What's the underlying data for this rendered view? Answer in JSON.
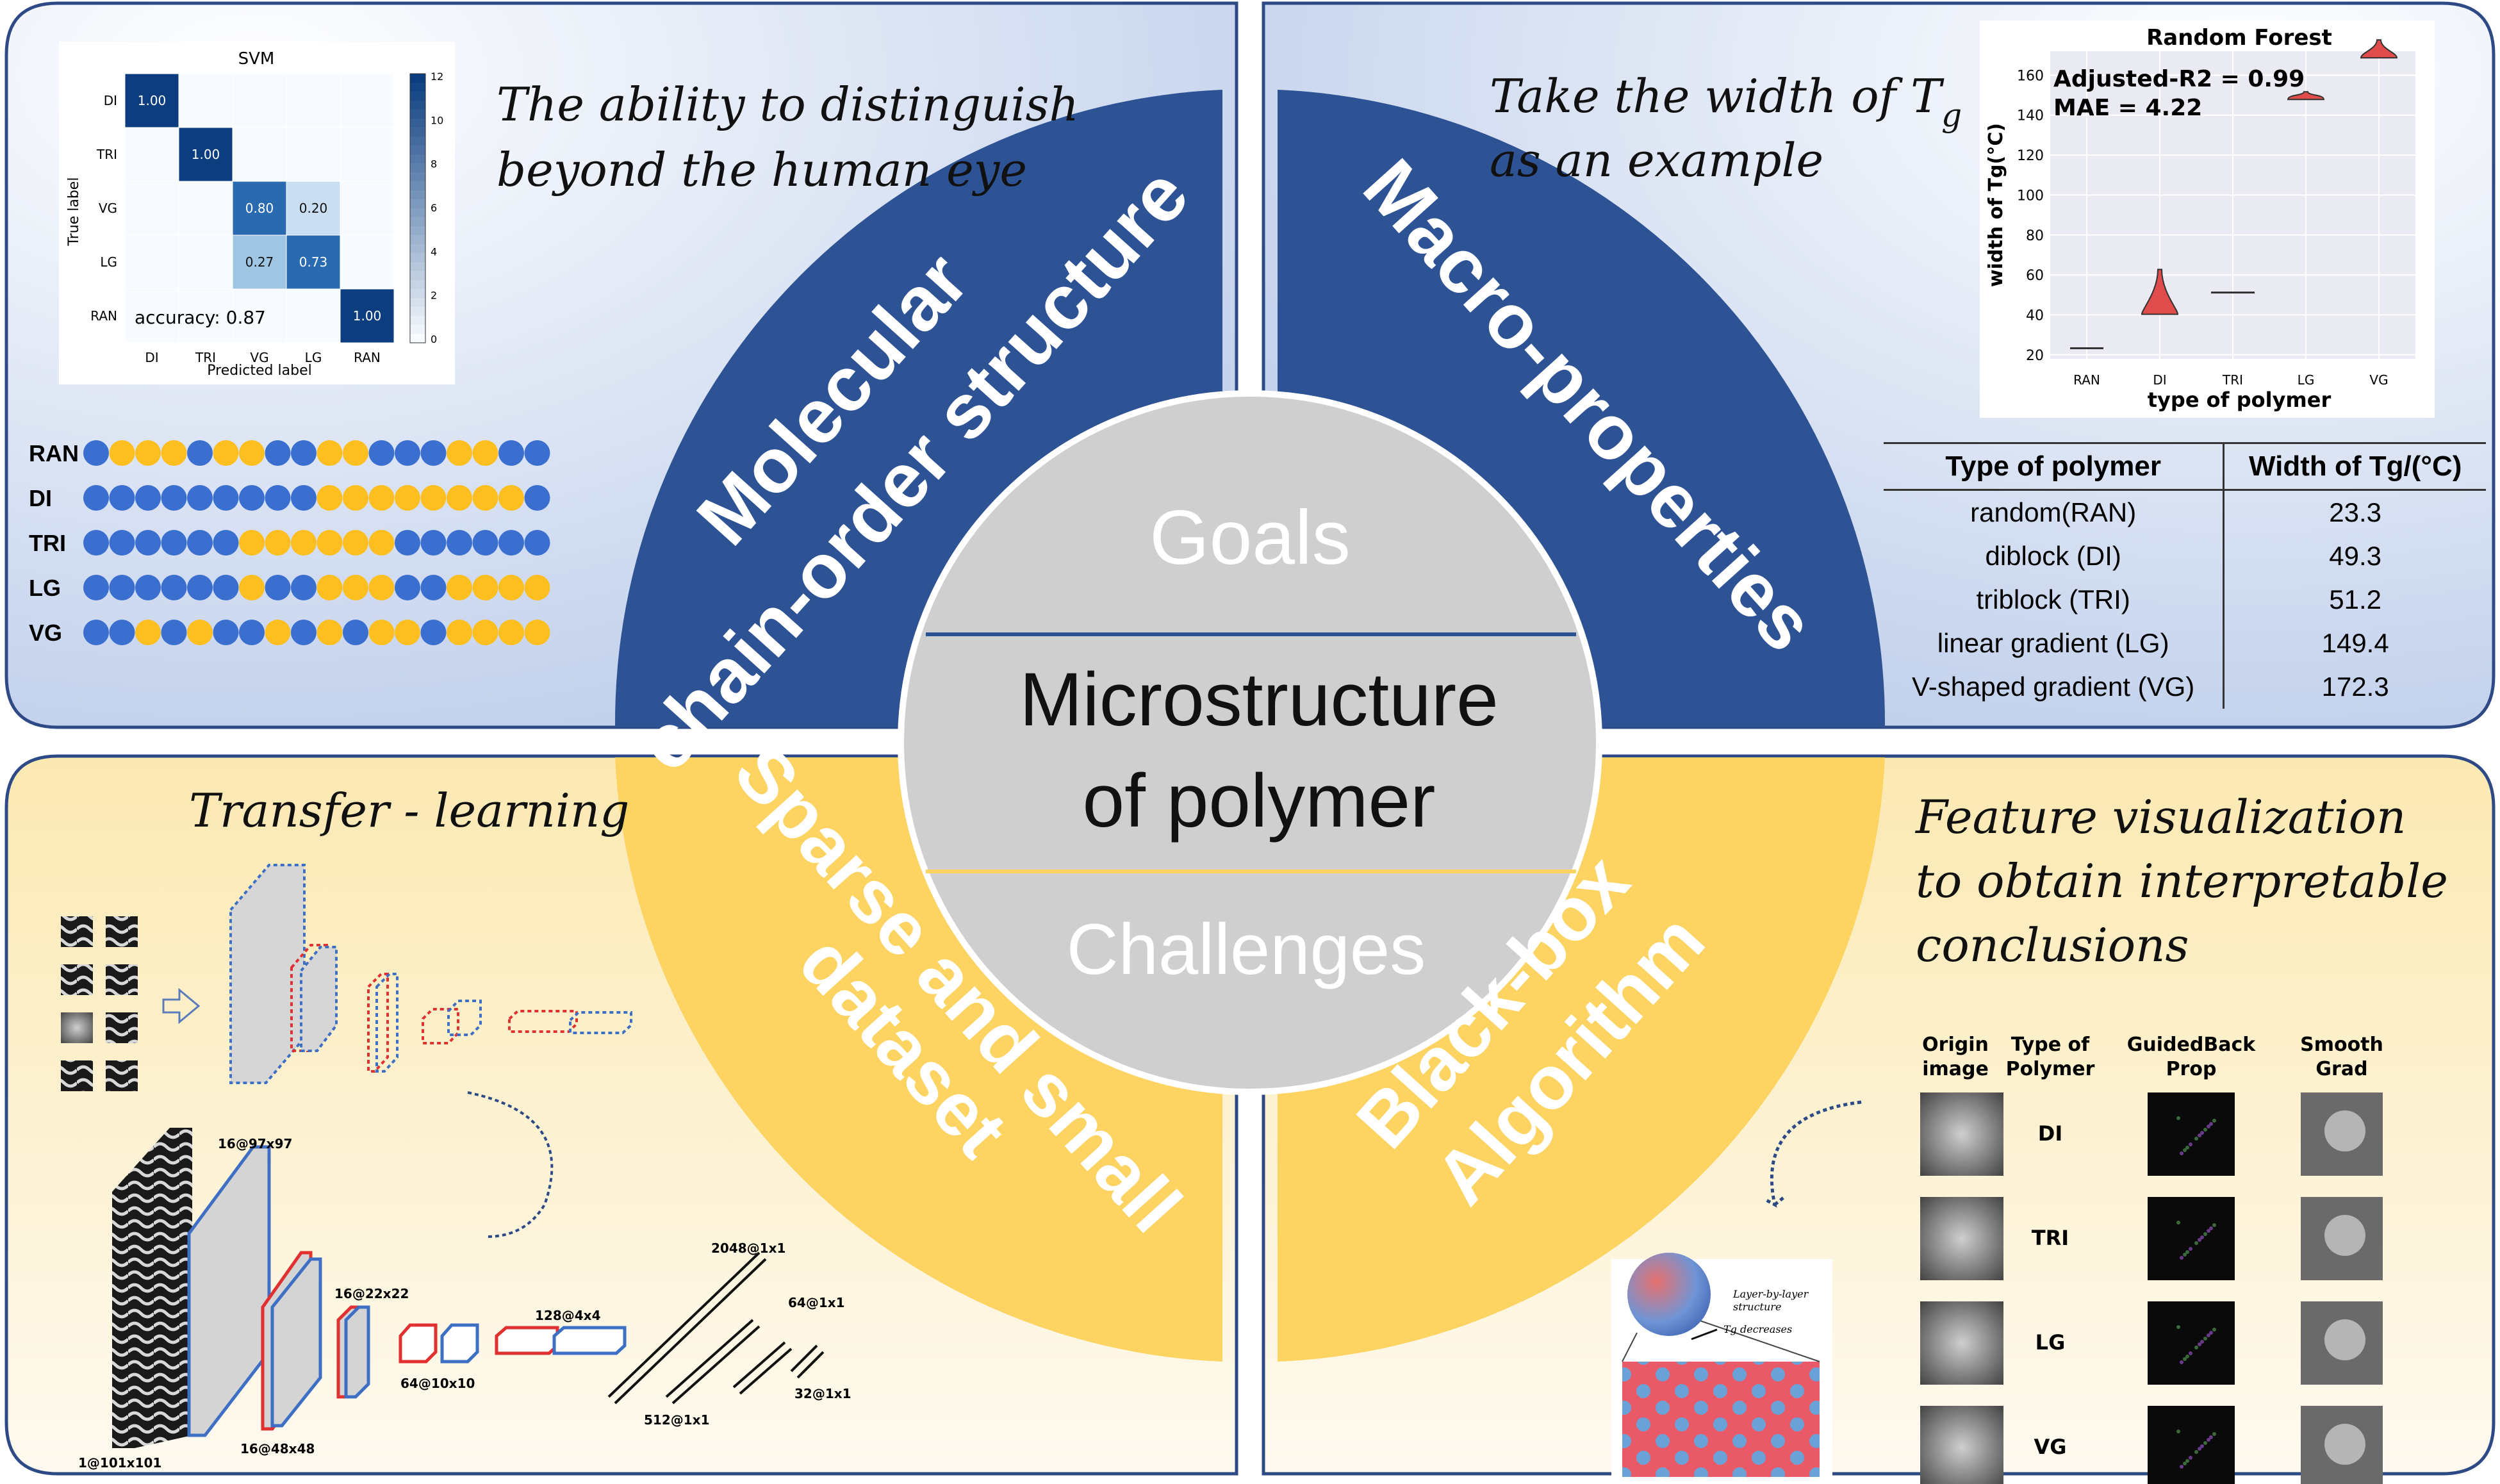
{
  "center": {
    "goals": "Goals",
    "challenges": "Challenges",
    "title_line1": "Microstructure",
    "title_line2": "of polymer"
  },
  "arcs": {
    "tl_line1": "Molecular",
    "tl_line2": "chain-order structure",
    "tr": "Macro-properties",
    "bl_line1": "Sparse and small",
    "bl_line2": "dataset",
    "br_line1": "Black-box",
    "br_line2": "Algorithm"
  },
  "captions": {
    "tl_line1": "The ability to distinguish",
    "tl_line2": "beyond the human eye",
    "tr_line1": "Take the width of T",
    "tr_sub": "g",
    "tr_line2": "as an example",
    "bl": "Transfer - learning",
    "br_line1": "Feature visualization",
    "br_line2": "to obtain interpretable",
    "br_line3": "conclusions"
  },
  "svm": {
    "title": "SVM",
    "ylabel": "True label",
    "xlabel": "Predicted label",
    "labels": [
      "DI",
      "TRI",
      "VG",
      "LG",
      "RAN"
    ],
    "matrix": [
      [
        "1.00",
        "",
        "",
        "",
        ""
      ],
      [
        "",
        "1.00",
        "",
        "",
        ""
      ],
      [
        "",
        "",
        "0.80",
        "0.20",
        ""
      ],
      [
        "",
        "",
        "0.27",
        "0.73",
        ""
      ],
      [
        "",
        "",
        "",
        "",
        "1.00"
      ]
    ],
    "accuracy": "accuracy:  0.87",
    "colorbar_ticks": [
      "12",
      "10",
      "8",
      "6",
      "4",
      "2",
      "0"
    ]
  },
  "sequences": {
    "labels": [
      "RAN",
      "DI",
      "TRI",
      "LG",
      "VG"
    ],
    "rows": [
      "BYYYBYYBBYYBBBYYBB",
      "BBBBBBBBBYYYYYYYYB",
      "BBBBBBYYYYYYBBBBBB",
      "BBBBBBYBBYYYBBYYYY",
      "BBYBYBBYBYBYYBYYYY"
    ],
    "colors": {
      "B": "#3a6fd0",
      "Y": "#fdbf20"
    }
  },
  "chart_data": {
    "type": "violin",
    "title": "Random Forest",
    "xlabel": "type of polymer",
    "ylabel": "width of Tg(°C)",
    "categories": [
      "RAN",
      "DI",
      "TRI",
      "LG",
      "VG"
    ],
    "ylim": [
      18,
      172
    ],
    "yticks": [
      "20",
      "40",
      "60",
      "80",
      "100",
      "120",
      "140",
      "160"
    ],
    "values": [
      23.3,
      49.3,
      51.2,
      149.4,
      172.3
    ],
    "annotation1": "Adjusted-R2  = 0.99",
    "annotation2": "MAE  = 4.22"
  },
  "table": {
    "headers": [
      "Type of polymer",
      "Width of Tg/(°C)"
    ],
    "rows": [
      [
        "random(RAN)",
        "23.3"
      ],
      [
        "diblock (DI)",
        "49.3"
      ],
      [
        "triblock (TRI)",
        "51.2"
      ],
      [
        "linear gradient (LG)",
        "149.4"
      ],
      [
        "V-shaped gradient (VG)",
        "172.3"
      ]
    ]
  },
  "cnn": {
    "labels": [
      "16@97x97",
      "16@48x48",
      "16@22x22",
      "64@10x10",
      "128@4x4",
      "2048@1x1",
      "512@1x1",
      "64@1x1",
      "32@1x1",
      "1@101x101"
    ]
  },
  "feature": {
    "col_headers": [
      "Origin image",
      "Type of Polymer",
      "GuidedBack Prop",
      "Smooth Grad"
    ],
    "col_header_lines": [
      [
        "Origin",
        "image"
      ],
      [
        "Type of",
        "Polymer"
      ],
      [
        "GuidedBack",
        "Prop"
      ],
      [
        "Smooth",
        "Grad"
      ]
    ],
    "rows": [
      "DI",
      "TRI",
      "LG",
      "VG"
    ]
  },
  "inset": {
    "line1": "Layer-by-layer",
    "line2": "structure",
    "line3": "Tg decreases"
  },
  "colors": {
    "blue": "#2e5395",
    "yellow": "#fed766",
    "grey": "#d0cfcf",
    "panel_blue": "#cdd8ee",
    "panel_yellow": "#fdf0c8",
    "border": "#2e4a86"
  }
}
